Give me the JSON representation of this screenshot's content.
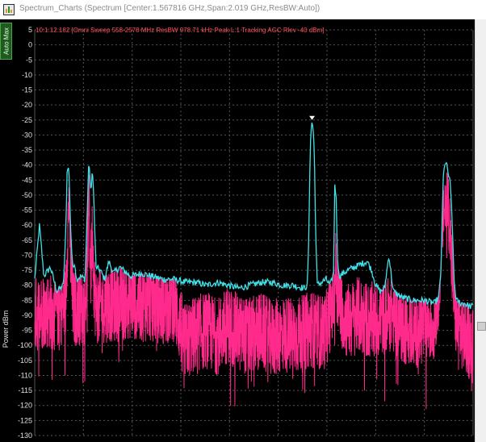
{
  "window": {
    "title": "Spectrum_Charts (Spectrum [Center:1.567816 GHz,Span:2.019 GHz,ResBW:Auto])",
    "icon": "spectrum-app-icon"
  },
  "toolbar": {
    "auto_max_label": "Auto Max"
  },
  "colors": {
    "background": "#000000",
    "grid": "#555555",
    "max_hold_trace": "#40e0e8",
    "live_trace": "#ff2a8c",
    "axis_text": "#e0e0e0",
    "info_text": "#ff4f5f",
    "marker": "#ffffff"
  },
  "chart_data": {
    "type": "line",
    "title": "",
    "xlabel": "",
    "ylabel": "Power dBm",
    "info_text": "10:1:12:182 [Omni Sweep 558-2578 MHz ResBW 978.71 kHz Peak L:1 Tracking AGC Rlev -40 dBm]",
    "xlim": [
      558,
      2578
    ],
    "ylim": [
      -130,
      5
    ],
    "yticks": [
      "5",
      "0",
      "-5",
      "-10",
      "-15",
      "-20",
      "-25",
      "-30",
      "-35",
      "-40",
      "-45",
      "-50",
      "-55",
      "-60",
      "-65",
      "-70",
      "-75",
      "-80",
      "-85",
      "-90",
      "-95",
      "-100",
      "-105",
      "-110",
      "-115",
      "-120",
      "-125",
      "-130"
    ],
    "grid": true,
    "x_grid_lines": 9,
    "peak_marker": {
      "x": 1836,
      "y": -25
    },
    "series": [
      {
        "role": "max-hold",
        "color": "#40e0e8",
        "x": [
          558,
          580,
          600,
          630,
          660,
          690,
          700,
          708,
          716,
          722,
          728,
          735,
          742,
          750,
          770,
          790,
          800,
          806,
          812,
          818,
          824,
          832,
          840,
          860,
          880,
          900,
          920,
          950,
          1000,
          1050,
          1100,
          1150,
          1200,
          1250,
          1300,
          1350,
          1400,
          1450,
          1500,
          1550,
          1600,
          1650,
          1700,
          1750,
          1800,
          1815,
          1822,
          1828,
          1834,
          1840,
          1846,
          1852,
          1860,
          1880,
          1900,
          1920,
          1935,
          1941,
          1947,
          1953,
          1960,
          1980,
          2000,
          2030,
          2060,
          2090,
          2110,
          2130,
          2150,
          2170,
          2190,
          2210,
          2250,
          2300,
          2350,
          2400,
          2420,
          2430,
          2440,
          2448,
          2456,
          2464,
          2472,
          2480,
          2490,
          2500,
          2520,
          2540,
          2560,
          2578
        ],
        "y": [
          -78,
          -60,
          -77,
          -74,
          -82,
          -80,
          -65,
          -40,
          -42,
          -58,
          -68,
          -75,
          -72,
          -78,
          -77,
          -78,
          -56,
          -40,
          -43,
          -50,
          -40,
          -55,
          -74,
          -75,
          -78,
          -72,
          -76,
          -74,
          -77,
          -76,
          -77,
          -78,
          -78,
          -79,
          -79,
          -80,
          -79,
          -80,
          -81,
          -80,
          -79,
          -79,
          -80,
          -80,
          -81,
          -80,
          -60,
          -32,
          -26,
          -27,
          -34,
          -60,
          -80,
          -79,
          -78,
          -80,
          -76,
          -46,
          -51,
          -70,
          -77,
          -76,
          -75,
          -74,
          -73,
          -72,
          -75,
          -80,
          -82,
          -81,
          -70,
          -82,
          -84,
          -85,
          -85,
          -86,
          -84,
          -75,
          -45,
          -39,
          -40,
          -43,
          -46,
          -55,
          -78,
          -85,
          -86,
          -86,
          -87,
          -87
        ]
      },
      {
        "role": "live",
        "color": "#ff2a8c",
        "x": [
          558,
          600,
          650,
          700,
          708,
          716,
          724,
          732,
          740,
          760,
          790,
          800,
          808,
          816,
          824,
          832,
          840,
          900,
          950,
          1000,
          1050,
          1100,
          1150,
          1200,
          1250,
          1300,
          1350,
          1400,
          1450,
          1500,
          1550,
          1600,
          1650,
          1700,
          1750,
          1800,
          1830,
          1860,
          1900,
          1935,
          1945,
          1955,
          1970,
          2000,
          2050,
          2100,
          2150,
          2200,
          2250,
          2300,
          2350,
          2400,
          2420,
          2440,
          2450,
          2460,
          2470,
          2480,
          2500,
          2540,
          2578
        ],
        "y": [
          -90,
          -88,
          -89,
          -86,
          -66,
          -50,
          -72,
          -86,
          -88,
          -87,
          -87,
          -72,
          -52,
          -76,
          -62,
          -80,
          -87,
          -86,
          -86,
          -85,
          -86,
          -86,
          -87,
          -86,
          -99,
          -96,
          -95,
          -97,
          -93,
          -96,
          -97,
          -95,
          -98,
          -96,
          -97,
          -96,
          -94,
          -96,
          -95,
          -84,
          -74,
          -82,
          -88,
          -92,
          -90,
          -92,
          -91,
          -89,
          -93,
          -95,
          -94,
          -92,
          -80,
          -56,
          -53,
          -52,
          -58,
          -74,
          -92,
          -97,
          -100
        ]
      }
    ]
  }
}
